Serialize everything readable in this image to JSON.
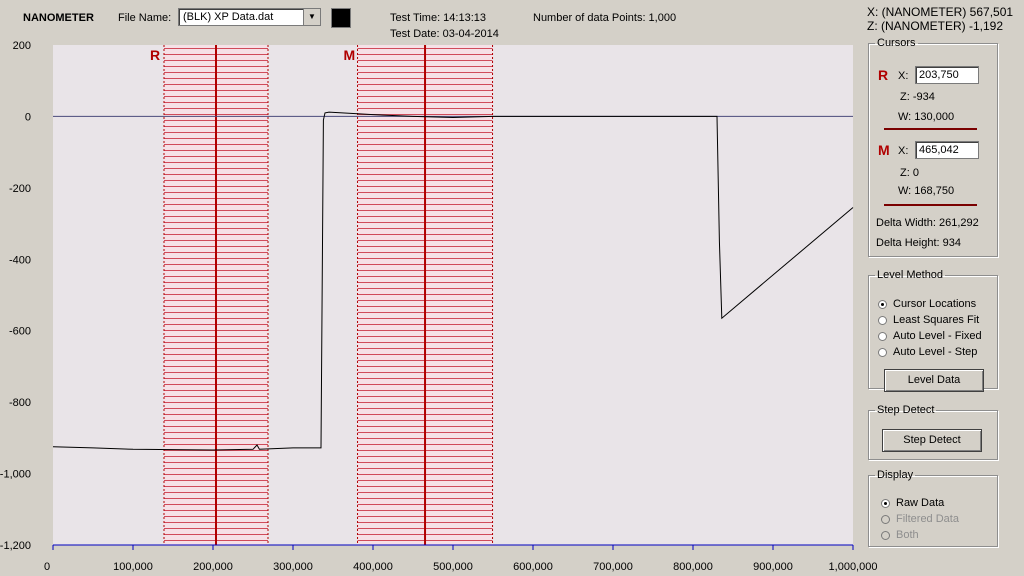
{
  "header": {
    "brand": "NANOMETER",
    "file_name_label": "File Name:",
    "file_name_value": "(BLK) XP Data.dat",
    "test_time": "Test Time: 14:13:13",
    "test_date": "Test Date: 03-04-2014",
    "num_points": "Number of data Points: 1,000",
    "readout_x": "X: (NANOMETER)  567,501",
    "readout_z": "Z: (NANOMETER)  -1,192"
  },
  "cursors": {
    "title": "Cursors",
    "r": {
      "letter": "R",
      "x_label": "X:",
      "x_value": "203,750",
      "z": "Z:  -934",
      "w": "W:  130,000"
    },
    "m": {
      "letter": "M",
      "x_label": "X:",
      "x_value": "465,042",
      "z": "Z:  0",
      "w": "W:  168,750"
    },
    "delta_width": "Delta Width:  261,292",
    "delta_height": "Delta Height: 934"
  },
  "level_method": {
    "title": "Level Method",
    "options": [
      "Cursor Locations",
      "Least Squares Fit",
      "Auto Level - Fixed",
      "Auto Level - Step"
    ],
    "selected": 0,
    "button": "Level Data"
  },
  "step_detect": {
    "title": "Step Detect",
    "button": "Step Detect"
  },
  "display": {
    "title": "Display",
    "options": [
      "Raw Data",
      "Filtered Data",
      "Both"
    ],
    "selected": 0
  },
  "colors": {
    "plot_bg": "#e9e4e8",
    "cursor": "#b00000",
    "trace": "#000000",
    "zero_line": "#4a4a7a"
  },
  "chart_data": {
    "type": "line",
    "xlim": [
      0,
      1000000
    ],
    "ylim": [
      -1200,
      200
    ],
    "x_ticks": [
      0,
      100000,
      200000,
      300000,
      400000,
      500000,
      600000,
      700000,
      800000,
      900000,
      1000000
    ],
    "x_tick_labels": [
      "0",
      "100,000",
      "200,000",
      "300,000",
      "400,000",
      "500,000",
      "600,000",
      "700,000",
      "800,000",
      "900,000",
      "1,000,000"
    ],
    "y_ticks": [
      200,
      0,
      -200,
      -400,
      -600,
      -800,
      -1000,
      -1200
    ],
    "y_tick_labels": [
      "200",
      "0",
      "-200",
      "-400",
      "-600",
      "-800",
      "-1,000",
      "-1,200"
    ],
    "cursors": [
      {
        "label": "R",
        "x": 203750,
        "width": 130000
      },
      {
        "label": "M",
        "x": 465042,
        "width": 168750
      }
    ],
    "series": [
      {
        "x": [
          0,
          50000,
          100000,
          150000,
          200000,
          250000,
          255000,
          258000,
          300000,
          335000,
          338000,
          340000,
          345000,
          400000,
          450000,
          500000,
          550000,
          600000,
          650000,
          700000,
          830000,
          833000,
          836000,
          1000000
        ],
        "y": [
          -925,
          -928,
          -932,
          -933,
          -934,
          -932,
          -920,
          -932,
          -928,
          -928,
          -10,
          10,
          12,
          5,
          0,
          -3,
          0,
          0,
          0,
          0,
          0,
          -350,
          -565,
          -255
        ]
      }
    ]
  }
}
